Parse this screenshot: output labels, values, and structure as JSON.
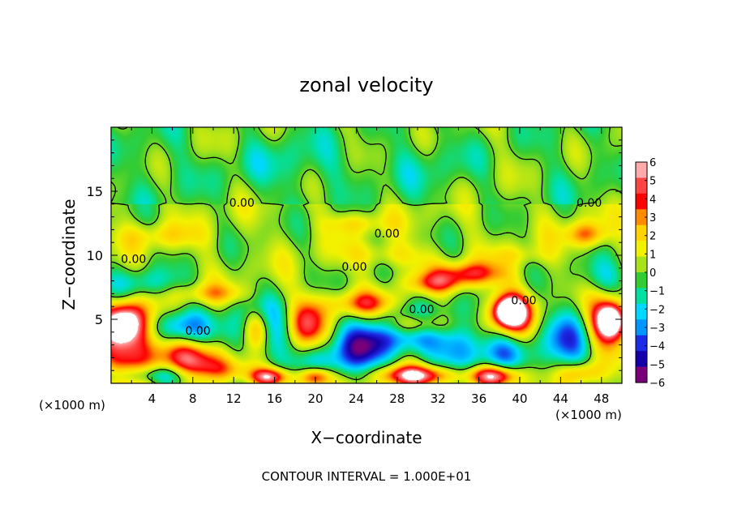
{
  "chart_data": {
    "type": "heatmap",
    "title": "zonal velocity",
    "xlabel": "X−coordinate",
    "ylabel": "Z−coordinate",
    "x_unit_left": "(×1000 m)",
    "x_unit_right": "(×1000 m)",
    "footer": "CONTOUR INTERVAL = 1.000E+01",
    "xlim": [
      0,
      50
    ],
    "ylim": [
      0,
      20
    ],
    "x_ticks": [
      "4",
      "8",
      "12",
      "16",
      "20",
      "24",
      "28",
      "32",
      "36",
      "40",
      "44",
      "48"
    ],
    "x_tick_values": [
      4,
      8,
      12,
      16,
      20,
      24,
      28,
      32,
      36,
      40,
      44,
      48
    ],
    "y_ticks": [
      "5",
      "10",
      "15"
    ],
    "y_tick_values": [
      5,
      10,
      15
    ],
    "colorbar": {
      "range": [
        -6,
        6
      ],
      "labels": [
        "6",
        "5",
        "4",
        "3",
        "2",
        "1",
        "0",
        "−1",
        "−2",
        "−3",
        "−4",
        "−5",
        "−6"
      ],
      "colors": [
        "#ffaaaa",
        "#ff4444",
        "#ff0000",
        "#ff8c00",
        "#ffd400",
        "#f2f200",
        "#a8e21a",
        "#33cc33",
        "#00e0a0",
        "#00d8ff",
        "#0096ff",
        "#1c2ce6",
        "#1400aa",
        "#7a007a"
      ]
    },
    "contour_labels": [
      {
        "text": "0.00",
        "x": 12.8,
        "z": 14.1
      },
      {
        "text": "0.00",
        "x": 46.8,
        "z": 14.1
      },
      {
        "text": "0.00",
        "x": 27.0,
        "z": 11.7
      },
      {
        "text": "0.00",
        "x": 2.2,
        "z": 9.7
      },
      {
        "text": "0.00",
        "x": 23.8,
        "z": 9.1
      },
      {
        "text": "0.00",
        "x": 40.4,
        "z": 6.5
      },
      {
        "text": "0.00",
        "x": 30.4,
        "z": 5.8
      },
      {
        "text": "0.00",
        "x": 8.5,
        "z": 4.1
      }
    ],
    "blobs": [
      {
        "x": 2.0,
        "z": 2.5,
        "rx": 3.0,
        "rz": 3.2,
        "v": 4.6
      },
      {
        "x": 1.2,
        "z": 4.8,
        "rx": 2.0,
        "rz": 1.5,
        "v": 6.0
      },
      {
        "x": 6.5,
        "z": 4.5,
        "rx": 3.0,
        "rz": 1.3,
        "v": -3.8
      },
      {
        "x": 7.5,
        "z": 2.2,
        "rx": 3.5,
        "rz": 1.2,
        "v": 3.6
      },
      {
        "x": 4.0,
        "z": 0.6,
        "rx": 5.0,
        "rz": 0.8,
        "v": -3.4
      },
      {
        "x": 14.5,
        "z": 4.2,
        "rx": 2.8,
        "rz": 2.4,
        "v": -4.8
      },
      {
        "x": 14.3,
        "z": 4.3,
        "rx": 1.5,
        "rz": 1.7,
        "v": 6.0
      },
      {
        "x": 10.5,
        "z": 1.0,
        "rx": 3.5,
        "rz": 1.0,
        "v": 3.5
      },
      {
        "x": 15.5,
        "z": 0.5,
        "rx": 2.0,
        "rz": 0.7,
        "v": 5.5
      },
      {
        "x": 19.2,
        "z": 4.7,
        "rx": 1.8,
        "rz": 2.0,
        "v": 4.3
      },
      {
        "x": 21.0,
        "z": 1.5,
        "rx": 3.0,
        "rz": 1.5,
        "v": -2.5
      },
      {
        "x": 20.0,
        "z": 0.5,
        "rx": 1.6,
        "rz": 0.8,
        "v": 5.5
      },
      {
        "x": 25.0,
        "z": 2.8,
        "rx": 3.0,
        "rz": 1.8,
        "v": -4.5
      },
      {
        "x": 29.5,
        "z": 4.4,
        "rx": 4.5,
        "rz": 1.8,
        "v": -4.8
      },
      {
        "x": 29.8,
        "z": 4.6,
        "rx": 3.2,
        "rz": 1.0,
        "v": 6.0
      },
      {
        "x": 30.0,
        "z": 0.6,
        "rx": 3.8,
        "rz": 0.8,
        "v": 6.0
      },
      {
        "x": 25.0,
        "z": 6.2,
        "rx": 3.5,
        "rz": 1.0,
        "v": 3.6
      },
      {
        "x": 35.0,
        "z": 8.6,
        "rx": 3.5,
        "rz": 0.9,
        "v": 3.8
      },
      {
        "x": 32.0,
        "z": 7.8,
        "rx": 3.0,
        "rz": 0.8,
        "v": 2.8
      },
      {
        "x": 34.0,
        "z": 2.5,
        "rx": 2.5,
        "rz": 1.8,
        "v": -3.5
      },
      {
        "x": 39.2,
        "z": 5.5,
        "rx": 2.4,
        "rz": 1.8,
        "v": 4.8
      },
      {
        "x": 39.0,
        "z": 5.6,
        "rx": 1.4,
        "rz": 1.0,
        "v": 6.0
      },
      {
        "x": 38.5,
        "z": 2.5,
        "rx": 2.5,
        "rz": 1.5,
        "v": -3.0
      },
      {
        "x": 37.5,
        "z": 0.6,
        "rx": 2.5,
        "rz": 0.8,
        "v": 6.0
      },
      {
        "x": 44.5,
        "z": 3.5,
        "rx": 2.5,
        "rz": 2.5,
        "v": -3.8
      },
      {
        "x": 46.5,
        "z": 11.6,
        "rx": 2.0,
        "rz": 1.0,
        "v": 3.3
      },
      {
        "x": 48.5,
        "z": 4.8,
        "rx": 2.0,
        "rz": 2.0,
        "v": 5.0
      },
      {
        "x": 49.0,
        "z": 4.9,
        "rx": 1.2,
        "rz": 1.2,
        "v": 6.0
      },
      {
        "x": 46.0,
        "z": 0.8,
        "rx": 2.0,
        "rz": 0.9,
        "v": 3.0
      },
      {
        "x": 3.0,
        "z": 7.8,
        "rx": 3.5,
        "rz": 1.2,
        "v": -2.2
      },
      {
        "x": 48.5,
        "z": 8.2,
        "rx": 2.5,
        "rz": 1.4,
        "v": -1.9
      },
      {
        "x": 10.0,
        "z": 7.0,
        "rx": 4.0,
        "rz": 0.8,
        "v": 2.0
      },
      {
        "x": 20.0,
        "z": 17.0,
        "rx": 15.0,
        "rz": 2.0,
        "v": -0.8
      },
      {
        "x": 5.0,
        "z": 11.5,
        "rx": 4.0,
        "rz": 1.0,
        "v": 1.5
      },
      {
        "x": 27.0,
        "z": 10.0,
        "rx": 4.0,
        "rz": 1.0,
        "v": 1.8
      },
      {
        "x": 40.0,
        "z": 10.0,
        "rx": 3.0,
        "rz": 0.8,
        "v": 1.2
      },
      {
        "x": 24.0,
        "z": 12.5,
        "rx": 3.0,
        "rz": 0.8,
        "v": 1.6
      }
    ]
  }
}
